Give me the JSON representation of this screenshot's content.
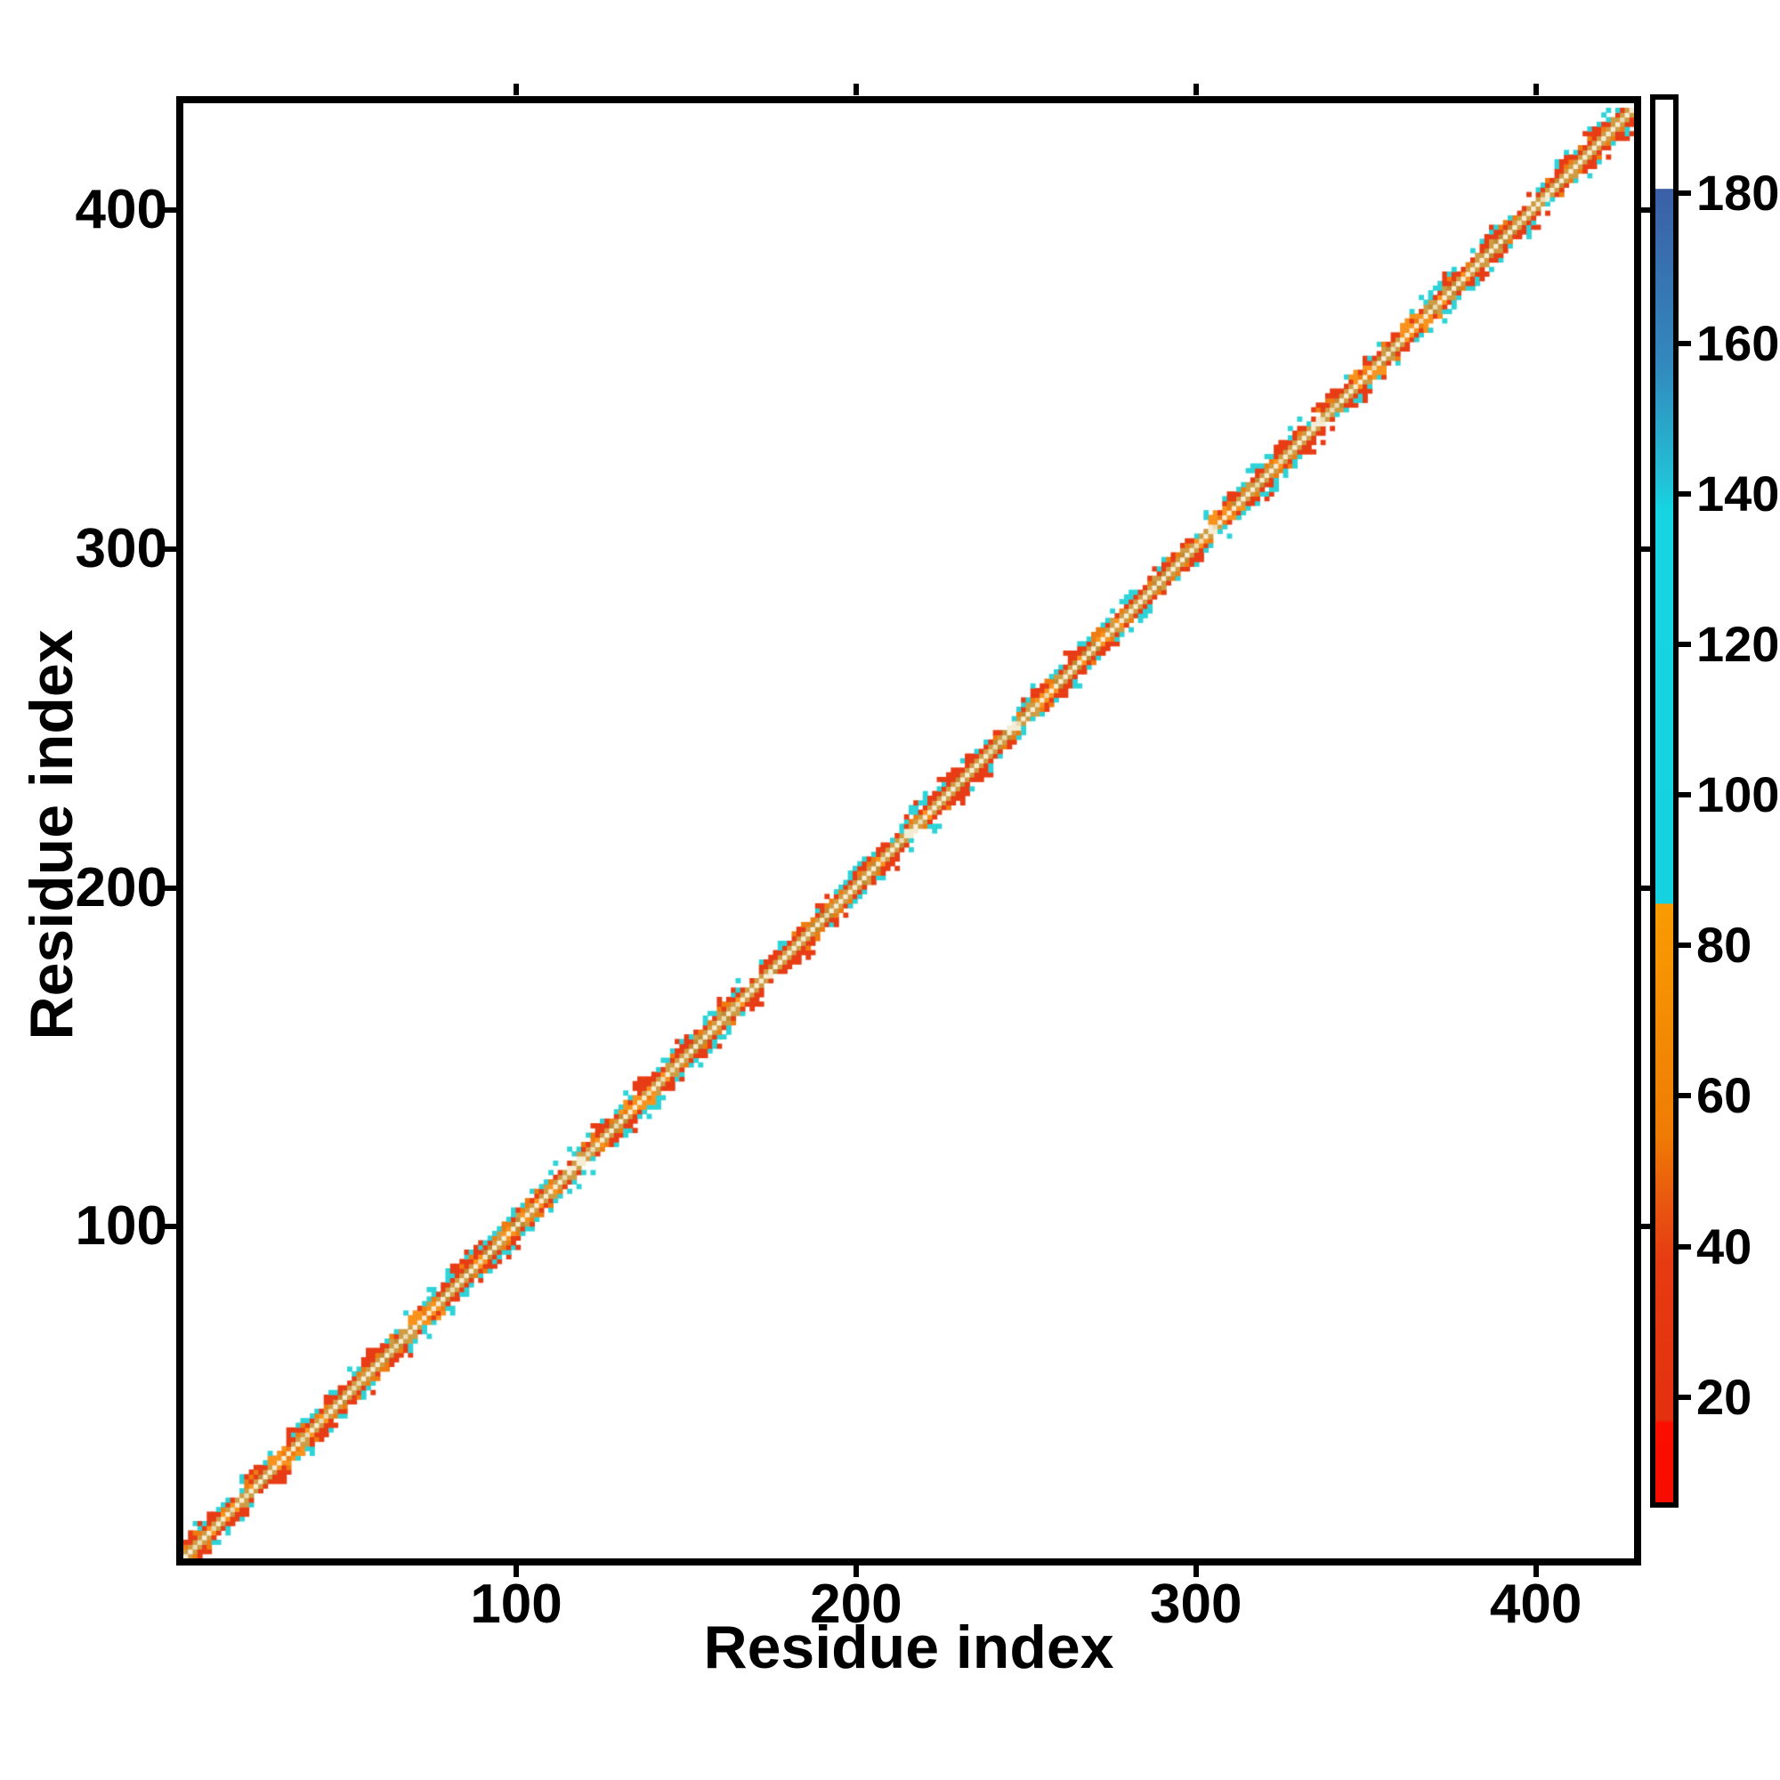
{
  "chart_data": {
    "type": "heatmap",
    "title": "",
    "xlabel": "Residue index",
    "ylabel": "Residue index",
    "x_ticks": [
      100,
      200,
      300,
      400
    ],
    "y_ticks": [
      100,
      200,
      300,
      400
    ],
    "x_range": [
      1,
      430
    ],
    "y_range": [
      1,
      430
    ],
    "grid": false,
    "legend_position": "none",
    "colorbar": {
      "position": "right",
      "ticks": [
        20,
        40,
        60,
        80,
        100,
        120,
        140,
        160,
        180
      ],
      "vmin": 6,
      "vmax": 192.4,
      "stops": [
        {
          "v": 192.4,
          "c": "#ffffff"
        },
        {
          "v": 180.6,
          "c": "#ffffff"
        },
        {
          "v": 180.5,
          "c": "#3b5fa6"
        },
        {
          "v": 157.0,
          "c": "#3289bd"
        },
        {
          "v": 142.0,
          "c": "#22c0d6"
        },
        {
          "v": 138.0,
          "c": "#16d4e2"
        },
        {
          "v": 85.6,
          "c": "#15d2e0"
        },
        {
          "v": 85.5,
          "c": "#f89c02"
        },
        {
          "v": 55.0,
          "c": "#ef7c04"
        },
        {
          "v": 45.0,
          "c": "#e85410"
        },
        {
          "v": 38.0,
          "c": "#e63b12"
        },
        {
          "v": 17.0,
          "c": "#e3300f"
        },
        {
          "v": 16.5,
          "c": "#fb0e00"
        },
        {
          "v": 6.0,
          "c": "#f60c00"
        }
      ]
    },
    "matrix": {
      "n_residues": 430,
      "n_cells": 310,
      "symmetric": true,
      "description": "Residue-residue distance map: only pairs within about +/-5 residues of the main diagonal have small finite values (red/orange/tan/cyan band); all longer-range pairs map to the top of the colour scale and render white.",
      "band": {
        "halfwidth_cells": 5,
        "center_color": "#f5ecd4",
        "center_alt": "#e9dcb4",
        "tan": "#cf9c44",
        "tan_dark": "#bf8c34",
        "orange": "#ee7c10",
        "orange_bright": "#f8931d",
        "red": "#e73c15",
        "cyan": "#2ed3d8",
        "red_bulges": [
          12,
          25,
          38,
          48,
          60,
          88,
          93,
          128,
          141,
          152,
          166,
          178,
          205,
          226,
          233,
          258,
          270,
          296,
          315,
          330,
          345,
          380,
          394,
          414,
          424
        ],
        "orange_bulges": [
          31,
          72,
          135,
          310,
          352,
          367
        ],
        "thin_spots": [
          20,
          70,
          118,
          172,
          215,
          248,
          305,
          338,
          402
        ],
        "seed": 7
      }
    }
  }
}
